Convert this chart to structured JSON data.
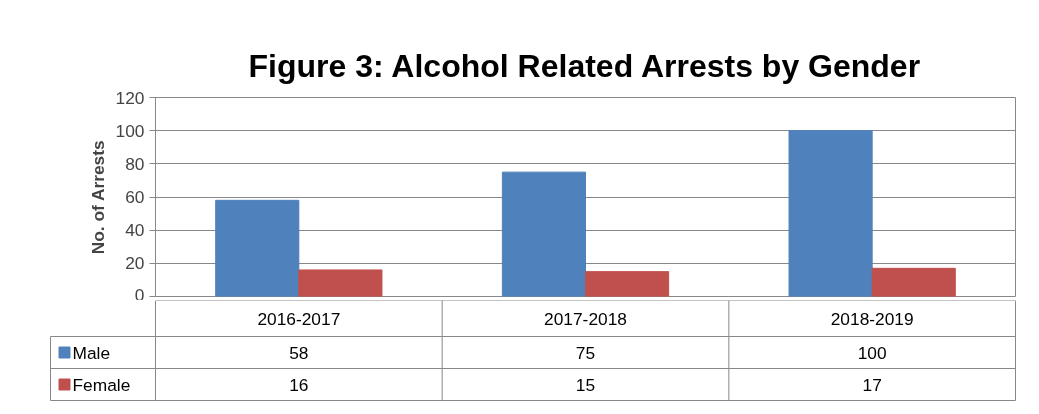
{
  "chart_data": {
    "type": "bar",
    "title": "Figure 3: Alcohol Related Arrests by Gender",
    "ylabel": "No. of Arrests",
    "categories": [
      "2016-2017",
      "2017-2018",
      "2018-2019"
    ],
    "series": [
      {
        "name": "Male",
        "color": "#4f81bd",
        "values": [
          58,
          75,
          100
        ]
      },
      {
        "name": "Female",
        "color": "#c0504d",
        "values": [
          16,
          15,
          17
        ]
      }
    ],
    "ylim": [
      0,
      120
    ],
    "yticks": [
      0,
      20,
      40,
      60,
      80,
      100,
      120
    ],
    "grid": "y",
    "legend": "bottom",
    "data_labels": true
  }
}
